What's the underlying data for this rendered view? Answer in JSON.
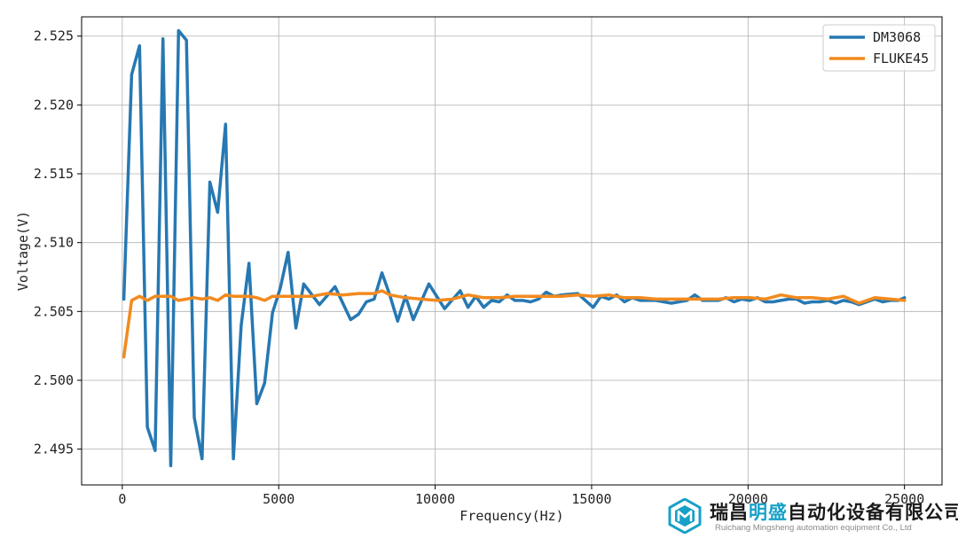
{
  "chart_data": {
    "type": "line",
    "xlabel": "Frequency(Hz)",
    "ylabel": "Voltage(V)",
    "xlim": [
      -1300,
      26200
    ],
    "ylim": [
      2.4924,
      2.5264
    ],
    "xticks": [
      0,
      5000,
      10000,
      15000,
      20000,
      25000
    ],
    "xtick_labels": [
      "0",
      "5000",
      "10000",
      "15000",
      "20000",
      "25000"
    ],
    "yticks": [
      2.495,
      2.5,
      2.505,
      2.51,
      2.515,
      2.52,
      2.525
    ],
    "ytick_labels": [
      "2.495",
      "2.500",
      "2.505",
      "2.510",
      "2.515",
      "2.520",
      "2.525"
    ],
    "grid": true,
    "legend_position": "top-right",
    "series": [
      {
        "name": "DM3068",
        "color": "#2678b2",
        "x": [
          50,
          300,
          550,
          800,
          1050,
          1300,
          1550,
          1800,
          2050,
          2300,
          2550,
          2800,
          3050,
          3300,
          3550,
          3800,
          4050,
          4300,
          4550,
          4800,
          5050,
          5300,
          5550,
          5800,
          6300,
          6800,
          7300,
          7550,
          7800,
          8050,
          8300,
          8550,
          8800,
          9050,
          9300,
          9800,
          10300,
          10800,
          11050,
          11300,
          11550,
          11800,
          12050,
          12300,
          12550,
          12800,
          13050,
          13300,
          13550,
          13800,
          14050,
          14550,
          15050,
          15300,
          15550,
          15800,
          16050,
          16300,
          16550,
          17050,
          17550,
          18050,
          18300,
          18550,
          19050,
          19300,
          19550,
          19800,
          20050,
          20300,
          20550,
          20800,
          21050,
          21300,
          21550,
          21800,
          22050,
          22300,
          22550,
          22800,
          23050,
          23300,
          23550,
          23800,
          24050,
          24300,
          24550,
          24800,
          25000
        ],
        "y": [
          2.5059,
          2.5222,
          2.5243,
          2.4966,
          2.4949,
          2.5248,
          2.4938,
          2.5254,
          2.5247,
          2.4973,
          2.4943,
          2.5144,
          2.5122,
          2.5186,
          2.4943,
          2.504,
          2.5085,
          2.4983,
          2.4998,
          2.5049,
          2.5067,
          2.5093,
          2.5038,
          2.507,
          2.5055,
          2.5068,
          2.5044,
          2.5048,
          2.5057,
          2.5059,
          2.5078,
          2.5062,
          2.5043,
          2.5061,
          2.5044,
          2.507,
          2.5052,
          2.5065,
          2.5053,
          2.5061,
          2.5053,
          2.5058,
          2.5057,
          2.5062,
          2.5058,
          2.5058,
          2.5057,
          2.5059,
          2.5064,
          2.5061,
          2.5062,
          2.5063,
          2.5053,
          2.5061,
          2.5059,
          2.5062,
          2.5057,
          2.506,
          2.5058,
          2.5058,
          2.5056,
          2.5058,
          2.5062,
          2.5058,
          2.5058,
          2.506,
          2.5057,
          2.5059,
          2.5058,
          2.506,
          2.5057,
          2.5057,
          2.5058,
          2.5059,
          2.5059,
          2.5056,
          2.5057,
          2.5057,
          2.5058,
          2.5056,
          2.5058,
          2.5057,
          2.5055,
          2.5057,
          2.5059,
          2.5057,
          2.5058,
          2.5058,
          2.506
        ]
      },
      {
        "name": "FLUKE45",
        "color": "#f28a1e",
        "x": [
          50,
          300,
          550,
          800,
          1050,
          1300,
          1550,
          1800,
          2050,
          2300,
          2550,
          2800,
          3050,
          3300,
          3550,
          3800,
          4050,
          4300,
          4550,
          4800,
          5050,
          5550,
          6050,
          6550,
          7050,
          7550,
          8050,
          8300,
          8550,
          9050,
          9550,
          10050,
          10550,
          11050,
          11550,
          12050,
          12550,
          13050,
          13550,
          14050,
          14550,
          15050,
          15550,
          16050,
          16550,
          17050,
          17550,
          18050,
          18550,
          19050,
          19550,
          20050,
          20550,
          21050,
          21550,
          22050,
          22550,
          23050,
          23550,
          24050,
          24550,
          25000
        ],
        "y": [
          2.5017,
          2.5058,
          2.5061,
          2.5058,
          2.5061,
          2.5061,
          2.5061,
          2.5058,
          2.5059,
          2.506,
          2.5059,
          2.506,
          2.5058,
          2.5062,
          2.5061,
          2.5061,
          2.5061,
          2.506,
          2.5058,
          2.5061,
          2.5061,
          2.5061,
          2.5061,
          2.5063,
          2.5062,
          2.5063,
          2.5063,
          2.5065,
          2.5062,
          2.506,
          2.5059,
          2.5058,
          2.5059,
          2.5062,
          2.506,
          2.506,
          2.5061,
          2.5061,
          2.5061,
          2.5061,
          2.5062,
          2.5061,
          2.5062,
          2.506,
          2.506,
          2.5059,
          2.5059,
          2.5059,
          2.5059,
          2.5059,
          2.506,
          2.506,
          2.5059,
          2.5062,
          2.506,
          2.506,
          2.5059,
          2.5061,
          2.5056,
          2.506,
          2.5059,
          2.5058
        ]
      }
    ]
  },
  "watermark": {
    "title_part1": "瑞昌",
    "title_highlight": "明盛",
    "title_part2": "自动化设备有限公司",
    "subtitle": "Ruichang Mingsheng automation equipment Co., Ltd",
    "accent_color": "#17a0c8"
  }
}
